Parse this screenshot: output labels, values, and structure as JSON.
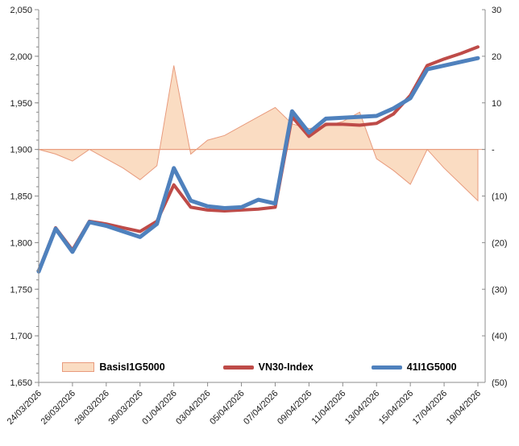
{
  "chart_data": {
    "type": "combo",
    "x": [
      "24/03/2026",
      "25/03/2026",
      "26/03/2026",
      "27/03/2026",
      "28/03/2026",
      "29/03/2026",
      "30/03/2026",
      "31/03/2026",
      "01/04/2026",
      "02/04/2026",
      "03/04/2026",
      "04/04/2026",
      "05/04/2026",
      "06/04/2026",
      "07/04/2026",
      "08/04/2026",
      "09/04/2026",
      "10/04/2026",
      "11/04/2026",
      "12/04/2026",
      "13/04/2026",
      "14/04/2026",
      "15/04/2026",
      "16/04/2026",
      "17/04/2026",
      "18/04/2026",
      "19/04/2026"
    ],
    "x_tick_labels": [
      "24/03/2026",
      "26/03/2026",
      "28/03/2026",
      "30/03/2026",
      "01/04/2026",
      "03/04/2026",
      "05/04/2026",
      "07/04/2026",
      "09/04/2026",
      "11/04/2026",
      "13/04/2026",
      "15/04/2026",
      "17/04/2026",
      "19/04/2026"
    ],
    "series": [
      {
        "name": "BasisI1G5000",
        "type": "area",
        "axis": "right",
        "fill": "#FADCC2",
        "color": "#E89B7D",
        "values": [
          0,
          -1,
          -2.5,
          0,
          -2,
          -4,
          -6.5,
          -3.5,
          18,
          -1,
          2,
          3,
          5,
          7,
          9,
          5.5,
          4.5,
          5,
          6,
          8,
          -2,
          -4.5,
          -7.5,
          0,
          -4,
          -7.5,
          -11
        ]
      },
      {
        "name": "VN30-Index",
        "type": "line",
        "axis": "left",
        "color": "#BE4B48",
        "width": 4,
        "values": [
          1770,
          1816,
          1792,
          1823,
          1820,
          1816,
          1812,
          1823,
          1862,
          1838,
          1835,
          1834,
          1835,
          1836,
          1838,
          1935,
          1914,
          1927,
          1927,
          1926,
          1928,
          1938,
          1958,
          1990,
          1997,
          2003,
          2010
        ]
      },
      {
        "name": "41I1G5000",
        "type": "line",
        "axis": "left",
        "color": "#4F81BD",
        "width": 5,
        "values": [
          1769,
          1815,
          1790,
          1822,
          1818,
          1812,
          1806,
          1820,
          1880,
          1845,
          1839,
          1837,
          1838,
          1846,
          1842,
          1941,
          1918,
          1933,
          1934,
          1935,
          1936,
          1944,
          1955,
          1986,
          1990,
          1994,
          1998
        ]
      }
    ],
    "left_axis": {
      "min": 1650,
      "max": 2050,
      "step": 50,
      "minor_step": 10,
      "labels_top_to_bottom": [
        "2,050",
        "2,000",
        "1,950",
        "1,900",
        "1,850",
        "1,800",
        "1,750",
        "1,700",
        "1,650"
      ]
    },
    "right_axis": {
      "min": -50,
      "max": 30,
      "step": 10,
      "labels_top_to_bottom": [
        "30",
        "20",
        "10",
        "-",
        "(10)",
        "(20)",
        "(30)",
        "(40)",
        "(50)"
      ],
      "zero_value": 0
    },
    "axis_color": "#8C8C8C",
    "legend": [
      {
        "label": "BasisI1G5000",
        "swatch": "area"
      },
      {
        "label": "VN30-Index",
        "swatch": "line-red"
      },
      {
        "label": "41I1G5000",
        "swatch": "line-blue"
      }
    ],
    "grid": "off",
    "legend_position": "bottom-center-inside"
  }
}
